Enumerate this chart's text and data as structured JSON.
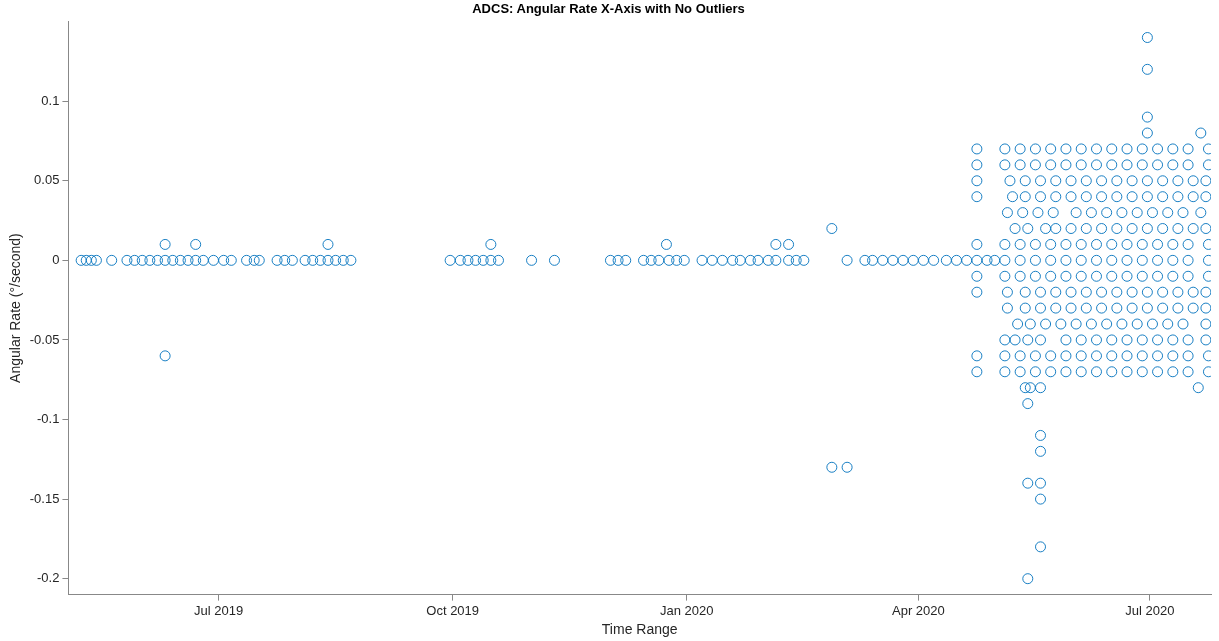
{
  "chart_data": {
    "type": "scatter",
    "title": "ADCS: Angular Rate X-Axis with No Outliers",
    "xlabel": "Time Range",
    "ylabel": "Angular Rate (°/second)",
    "marker": "circle",
    "grid": false,
    "legend": false,
    "xlim": [
      "2019-05-03",
      "2020-07-25"
    ],
    "xticks": [
      {
        "value": "2019-07-01",
        "label": "Jul 2019"
      },
      {
        "value": "2019-10-01",
        "label": "Oct 2019"
      },
      {
        "value": "2020-01-01",
        "label": "Jan 2020"
      },
      {
        "value": "2020-04-01",
        "label": "Apr 2020"
      },
      {
        "value": "2020-07-01",
        "label": "Jul 2020"
      }
    ],
    "ylim": [
      -0.21,
      0.15
    ],
    "yticks": [
      -0.2,
      -0.15,
      -0.1,
      -0.05,
      0,
      0.05,
      0.1
    ],
    "series": [
      {
        "color": "#0072bd",
        "x": [
          "2019-05-08",
          "2019-05-10",
          "2019-05-12",
          "2019-05-14",
          "2019-05-20",
          "2019-05-26",
          "2019-05-29",
          "2019-06-01",
          "2019-06-04",
          "2019-06-07",
          "2019-06-10",
          "2019-06-10",
          "2019-06-10",
          "2019-06-13",
          "2019-06-16",
          "2019-06-19",
          "2019-06-22",
          "2019-06-22",
          "2019-06-25",
          "2019-06-29",
          "2019-07-03",
          "2019-07-06",
          "2019-07-12",
          "2019-07-15",
          "2019-07-17",
          "2019-07-24",
          "2019-07-27",
          "2019-07-30",
          "2019-08-04",
          "2019-08-07",
          "2019-08-10",
          "2019-08-13",
          "2019-08-13",
          "2019-08-16",
          "2019-08-19",
          "2019-08-22"
        ],
        "values": [
          0,
          0,
          0,
          0,
          0,
          0,
          0,
          0,
          0,
          0,
          0,
          0.01,
          -0.06,
          0,
          0,
          0,
          0,
          0.01,
          0,
          0,
          0,
          0,
          0,
          0,
          0,
          0,
          0,
          0,
          0,
          0,
          0,
          0,
          0.01,
          0,
          0,
          0
        ]
      },
      {
        "color": "#0072bd",
        "x": [
          "2019-09-30",
          "2019-10-04",
          "2019-10-07",
          "2019-10-10",
          "2019-10-13",
          "2019-10-16",
          "2019-10-16",
          "2019-10-19",
          "2019-11-01",
          "2019-11-10",
          "2019-12-02",
          "2019-12-05",
          "2019-12-08",
          "2019-12-15",
          "2019-12-18",
          "2019-12-21",
          "2019-12-24",
          "2019-12-25",
          "2019-12-28",
          "2019-12-31",
          "2020-01-07",
          "2020-01-11",
          "2020-01-15",
          "2020-01-19",
          "2020-01-22",
          "2020-01-26",
          "2020-01-29",
          "2020-02-02",
          "2020-02-05",
          "2020-02-05",
          "2020-02-10",
          "2020-02-10",
          "2020-02-13",
          "2020-02-16",
          "2020-02-27",
          "2020-02-27",
          "2020-03-04",
          "2020-03-04",
          "2020-03-11",
          "2020-03-14",
          "2020-03-18",
          "2020-03-22",
          "2020-03-26",
          "2020-03-30",
          "2020-04-03",
          "2020-04-07",
          "2020-04-12"
        ],
        "values": [
          0,
          0,
          0,
          0,
          0,
          0,
          0.01,
          0,
          0,
          0,
          0,
          0,
          0,
          0,
          0,
          0,
          0.01,
          0,
          0,
          0,
          0,
          0,
          0,
          0,
          0,
          0,
          0,
          0,
          0,
          0.01,
          0.01,
          0,
          0,
          0,
          0.02,
          -0.13,
          -0.13,
          0,
          0,
          0,
          0,
          0,
          0,
          0,
          0,
          0,
          0
        ]
      },
      {
        "color": "#0072bd",
        "x": [
          "2020-04-16",
          "2020-04-20",
          "2020-04-24",
          "2020-04-28",
          "2020-05-01",
          "2020-04-24",
          "2020-04-24",
          "2020-04-24",
          "2020-04-24",
          "2020-04-24",
          "2020-04-24",
          "2020-04-24",
          "2020-04-24",
          "2020-04-24",
          "2020-05-13",
          "2020-05-15",
          "2020-05-19",
          "2020-05-14",
          "2020-05-19",
          "2020-05-19",
          "2020-05-14",
          "2020-05-19",
          "2020-05-19",
          "2020-05-19",
          "2020-05-14",
          "2020-06-30",
          "2020-06-30",
          "2020-06-30",
          "2020-06-30",
          "2020-07-21",
          "2020-07-20"
        ],
        "values": [
          0,
          0,
          0,
          0,
          0,
          0.07,
          0.06,
          0.05,
          0.04,
          0.01,
          -0.01,
          -0.02,
          -0.06,
          -0.07,
          -0.08,
          -0.08,
          -0.08,
          -0.09,
          -0.11,
          -0.12,
          -0.14,
          -0.14,
          -0.15,
          -0.18,
          -0.2,
          0.14,
          0.12,
          0.09,
          0.08,
          0.08,
          -0.08
        ]
      },
      {
        "color": "#0072bd",
        "x": [
          "2020-05-05",
          "2020-05-11",
          "2020-05-17",
          "2020-05-23",
          "2020-05-29",
          "2020-06-04",
          "2020-06-10",
          "2020-06-16",
          "2020-06-22",
          "2020-06-28",
          "2020-07-04",
          "2020-07-10",
          "2020-07-16",
          "2020-07-24"
        ],
        "values": [
          0.07,
          0.07,
          0.07,
          0.07,
          0.07,
          0.07,
          0.07,
          0.07,
          0.07,
          0.07,
          0.07,
          0.07,
          0.07,
          0.07
        ]
      },
      {
        "color": "#0072bd",
        "x": [
          "2020-05-05",
          "2020-05-11",
          "2020-05-17",
          "2020-05-23",
          "2020-05-29",
          "2020-06-04",
          "2020-06-10",
          "2020-06-16",
          "2020-06-22",
          "2020-06-28",
          "2020-07-04",
          "2020-07-10",
          "2020-07-16",
          "2020-07-24"
        ],
        "values": [
          0.06,
          0.06,
          0.06,
          0.06,
          0.06,
          0.06,
          0.06,
          0.06,
          0.06,
          0.06,
          0.06,
          0.06,
          0.06,
          0.06
        ]
      },
      {
        "color": "#0072bd",
        "x": [
          "2020-05-07",
          "2020-05-13",
          "2020-05-19",
          "2020-05-25",
          "2020-05-31",
          "2020-06-06",
          "2020-06-12",
          "2020-06-18",
          "2020-06-24",
          "2020-06-30",
          "2020-07-06",
          "2020-07-12",
          "2020-07-18",
          "2020-07-23"
        ],
        "values": [
          0.05,
          0.05,
          0.05,
          0.05,
          0.05,
          0.05,
          0.05,
          0.05,
          0.05,
          0.05,
          0.05,
          0.05,
          0.05,
          0.05
        ]
      },
      {
        "color": "#0072bd",
        "x": [
          "2020-05-08",
          "2020-05-13",
          "2020-05-19",
          "2020-05-25",
          "2020-05-31",
          "2020-06-06",
          "2020-06-12",
          "2020-06-18",
          "2020-06-24",
          "2020-06-30",
          "2020-07-06",
          "2020-07-12",
          "2020-07-18",
          "2020-07-23"
        ],
        "values": [
          0.04,
          0.04,
          0.04,
          0.04,
          0.04,
          0.04,
          0.04,
          0.04,
          0.04,
          0.04,
          0.04,
          0.04,
          0.04,
          0.04
        ]
      },
      {
        "color": "#0072bd",
        "x": [
          "2020-05-06",
          "2020-05-12",
          "2020-05-18",
          "2020-05-24",
          "2020-06-02",
          "2020-06-08",
          "2020-06-14",
          "2020-06-20",
          "2020-06-26",
          "2020-07-02",
          "2020-07-08",
          "2020-07-14",
          "2020-07-21"
        ],
        "values": [
          0.03,
          0.03,
          0.03,
          0.03,
          0.03,
          0.03,
          0.03,
          0.03,
          0.03,
          0.03,
          0.03,
          0.03,
          0.03
        ]
      },
      {
        "color": "#0072bd",
        "x": [
          "2020-05-09",
          "2020-05-14",
          "2020-05-21",
          "2020-05-25",
          "2020-05-31",
          "2020-06-06",
          "2020-06-12",
          "2020-06-18",
          "2020-06-24",
          "2020-06-30",
          "2020-07-06",
          "2020-07-12",
          "2020-07-18",
          "2020-07-23"
        ],
        "values": [
          0.02,
          0.02,
          0.02,
          0.02,
          0.02,
          0.02,
          0.02,
          0.02,
          0.02,
          0.02,
          0.02,
          0.02,
          0.02,
          0.02
        ]
      },
      {
        "color": "#0072bd",
        "x": [
          "2020-05-05",
          "2020-05-11",
          "2020-05-17",
          "2020-05-23",
          "2020-05-29",
          "2020-06-04",
          "2020-06-10",
          "2020-06-16",
          "2020-06-22",
          "2020-06-28",
          "2020-07-04",
          "2020-07-10",
          "2020-07-16",
          "2020-07-24"
        ],
        "values": [
          0.01,
          0.01,
          0.01,
          0.01,
          0.01,
          0.01,
          0.01,
          0.01,
          0.01,
          0.01,
          0.01,
          0.01,
          0.01,
          0.01
        ]
      },
      {
        "color": "#0072bd",
        "x": [
          "2020-05-05",
          "2020-05-11",
          "2020-05-17",
          "2020-05-23",
          "2020-05-29",
          "2020-06-04",
          "2020-06-10",
          "2020-06-16",
          "2020-06-22",
          "2020-06-28",
          "2020-07-04",
          "2020-07-10",
          "2020-07-16",
          "2020-07-24"
        ],
        "values": [
          0,
          0,
          0,
          0,
          0,
          0,
          0,
          0,
          0,
          0,
          0,
          0,
          0,
          0
        ]
      },
      {
        "color": "#0072bd",
        "x": [
          "2020-05-05",
          "2020-05-11",
          "2020-05-17",
          "2020-05-23",
          "2020-05-29",
          "2020-06-04",
          "2020-06-10",
          "2020-06-16",
          "2020-06-22",
          "2020-06-28",
          "2020-07-04",
          "2020-07-10",
          "2020-07-16",
          "2020-07-24"
        ],
        "values": [
          -0.01,
          -0.01,
          -0.01,
          -0.01,
          -0.01,
          -0.01,
          -0.01,
          -0.01,
          -0.01,
          -0.01,
          -0.01,
          -0.01,
          -0.01,
          -0.01
        ]
      },
      {
        "color": "#0072bd",
        "x": [
          "2020-05-06",
          "2020-05-13",
          "2020-05-19",
          "2020-05-25",
          "2020-05-31",
          "2020-06-06",
          "2020-06-12",
          "2020-06-18",
          "2020-06-24",
          "2020-06-30",
          "2020-07-06",
          "2020-07-12",
          "2020-07-18",
          "2020-07-23"
        ],
        "values": [
          -0.02,
          -0.02,
          -0.02,
          -0.02,
          -0.02,
          -0.02,
          -0.02,
          -0.02,
          -0.02,
          -0.02,
          -0.02,
          -0.02,
          -0.02,
          -0.02
        ]
      },
      {
        "color": "#0072bd",
        "x": [
          "2020-05-06",
          "2020-05-13",
          "2020-05-19",
          "2020-05-25",
          "2020-05-31",
          "2020-06-06",
          "2020-06-12",
          "2020-06-18",
          "2020-06-24",
          "2020-06-30",
          "2020-07-06",
          "2020-07-12",
          "2020-07-18",
          "2020-07-23"
        ],
        "values": [
          -0.03,
          -0.03,
          -0.03,
          -0.03,
          -0.03,
          -0.03,
          -0.03,
          -0.03,
          -0.03,
          -0.03,
          -0.03,
          -0.03,
          -0.03,
          -0.03
        ]
      },
      {
        "color": "#0072bd",
        "x": [
          "2020-05-10",
          "2020-05-15",
          "2020-05-21",
          "2020-05-27",
          "2020-06-02",
          "2020-06-08",
          "2020-06-14",
          "2020-06-20",
          "2020-06-26",
          "2020-07-02",
          "2020-07-08",
          "2020-07-14",
          "2020-07-23"
        ],
        "values": [
          -0.04,
          -0.04,
          -0.04,
          -0.04,
          -0.04,
          -0.04,
          -0.04,
          -0.04,
          -0.04,
          -0.04,
          -0.04,
          -0.04,
          -0.04
        ]
      },
      {
        "color": "#0072bd",
        "x": [
          "2020-05-05",
          "2020-05-09",
          "2020-05-14",
          "2020-05-19",
          "2020-05-29",
          "2020-06-04",
          "2020-06-10",
          "2020-06-16",
          "2020-06-22",
          "2020-06-28",
          "2020-07-04",
          "2020-07-10",
          "2020-07-16",
          "2020-07-23"
        ],
        "values": [
          -0.05,
          -0.05,
          -0.05,
          -0.05,
          -0.05,
          -0.05,
          -0.05,
          -0.05,
          -0.05,
          -0.05,
          -0.05,
          -0.05,
          -0.05,
          -0.05
        ]
      },
      {
        "color": "#0072bd",
        "x": [
          "2020-05-05",
          "2020-05-11",
          "2020-05-17",
          "2020-05-23",
          "2020-05-29",
          "2020-06-04",
          "2020-06-10",
          "2020-06-16",
          "2020-06-22",
          "2020-06-28",
          "2020-07-04",
          "2020-07-10",
          "2020-07-16",
          "2020-07-24"
        ],
        "values": [
          -0.06,
          -0.06,
          -0.06,
          -0.06,
          -0.06,
          -0.06,
          -0.06,
          -0.06,
          -0.06,
          -0.06,
          -0.06,
          -0.06,
          -0.06,
          -0.06
        ]
      },
      {
        "color": "#0072bd",
        "x": [
          "2020-05-05",
          "2020-05-11",
          "2020-05-17",
          "2020-05-23",
          "2020-05-29",
          "2020-06-04",
          "2020-06-10",
          "2020-06-16",
          "2020-06-22",
          "2020-06-28",
          "2020-07-04",
          "2020-07-10",
          "2020-07-16",
          "2020-07-24"
        ],
        "values": [
          -0.07,
          -0.07,
          -0.07,
          -0.07,
          -0.07,
          -0.07,
          -0.07,
          -0.07,
          -0.07,
          -0.07,
          -0.07,
          -0.07,
          -0.07,
          -0.07
        ]
      }
    ]
  }
}
